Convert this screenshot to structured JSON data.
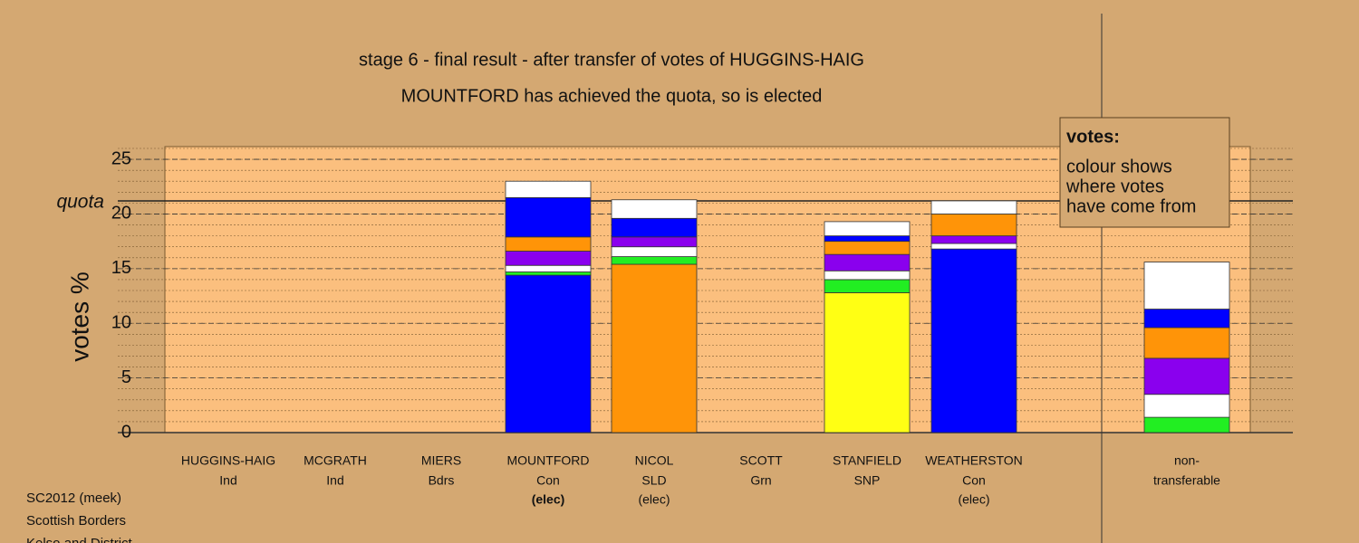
{
  "chart_data": {
    "type": "stacked-bar",
    "title": "stage 6 - final result - after transfer of votes of HUGGINS-HAIG",
    "subtitle": "MOUNTFORD has achieved the quota, so is elected",
    "y_label": "votes %",
    "ylim": [
      0,
      26
    ],
    "yticks": [
      0,
      5,
      10,
      15,
      20,
      25
    ],
    "minor_tick_step": 1,
    "quota": {
      "label": "quota",
      "value": 21.2
    },
    "legend": {
      "title": "votes:",
      "lines": [
        "colour shows",
        "where votes",
        "have come from"
      ]
    },
    "bars": [
      {
        "name": "HUGGINS-HAIG",
        "party": "Ind",
        "status": null,
        "segments": []
      },
      {
        "name": "MCGRATH",
        "party": "Ind",
        "status": null,
        "segments": []
      },
      {
        "name": "MIERS",
        "party": "Bdrs",
        "status": null,
        "segments": []
      },
      {
        "name": "MOUNTFORD",
        "party": "Con",
        "status": "(elec)",
        "segments": [
          {
            "color": "#0000ff",
            "value": 14.4
          },
          {
            "color": "#22ee22",
            "value": 0.3
          },
          {
            "color": "#ffffff",
            "value": 0.6
          },
          {
            "color": "#8a00ee",
            "value": 1.3
          },
          {
            "color": "#ff9408",
            "value": 1.3
          },
          {
            "color": "#0000ff",
            "value": 3.6
          },
          {
            "color": "#ffffff",
            "value": 1.5
          }
        ]
      },
      {
        "name": "NICOL",
        "party": "SLD",
        "status": "(elec)",
        "segments": [
          {
            "color": "#ff9408",
            "value": 15.4
          },
          {
            "color": "#22ee22",
            "value": 0.7
          },
          {
            "color": "#ffffff",
            "value": 0.9
          },
          {
            "color": "#8a00ee",
            "value": 0.9
          },
          {
            "color": "#0000ff",
            "value": 1.7
          },
          {
            "color": "#ffffff",
            "value": 1.7
          }
        ]
      },
      {
        "name": "SCOTT",
        "party": "Grn",
        "status": null,
        "segments": []
      },
      {
        "name": "STANFIELD",
        "party": "SNP",
        "status": null,
        "segments": [
          {
            "color": "#ffff14",
            "value": 12.8
          },
          {
            "color": "#22ee22",
            "value": 1.2
          },
          {
            "color": "#ffffff",
            "value": 0.8
          },
          {
            "color": "#8a00ee",
            "value": 1.5
          },
          {
            "color": "#ff9408",
            "value": 1.2
          },
          {
            "color": "#0000ff",
            "value": 0.5
          },
          {
            "color": "#ffffff",
            "value": 1.3
          }
        ]
      },
      {
        "name": "WEATHERSTON",
        "party": "Con",
        "status": "(elec)",
        "segments": [
          {
            "color": "#0000ff",
            "value": 16.8
          },
          {
            "color": "#ffffff",
            "value": 0.5
          },
          {
            "color": "#8a00ee",
            "value": 0.7
          },
          {
            "color": "#ff9408",
            "value": 2.0
          },
          {
            "color": "#ffffff",
            "value": 1.2
          }
        ]
      },
      {
        "name": "non-",
        "party": "transferable",
        "status": null,
        "segments": [
          {
            "color": "#22ee22",
            "value": 1.4
          },
          {
            "color": "#ffffff",
            "value": 2.1
          },
          {
            "color": "#8a00ee",
            "value": 3.3
          },
          {
            "color": "#ff9408",
            "value": 2.8
          },
          {
            "color": "#0000ff",
            "value": 1.7
          },
          {
            "color": "#ffffff",
            "value": 4.3
          }
        ]
      }
    ],
    "footer": [
      "SC2012 (meek)",
      "Scottish Borders",
      "Kelso and District"
    ]
  }
}
